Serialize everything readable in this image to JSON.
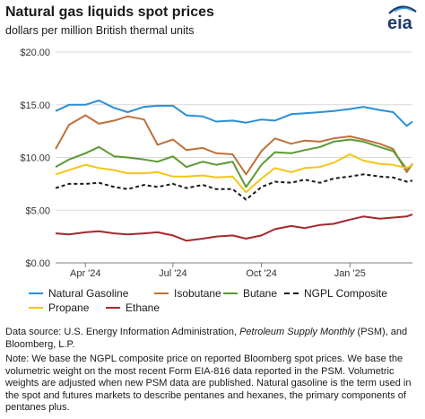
{
  "header": {
    "title": "Natural gas liquids spot prices",
    "subtitle": "dollars per million British thermal units",
    "logo_text": "eia"
  },
  "footer": {
    "source_a": "Data source: U.S. Energy Information Administration, ",
    "source_italic": "Petroleum Supply Monthly",
    "source_b": " (PSM), and Bloomberg, L.P.",
    "note": "Note: We base the NGPL composite price on reported Bloomberg spot prices. We base the volumetric weight on the most recent Form EIA-816 data reported in the PSM. Volumetric weights are adjusted when new PSM data are published. Natural gasoline is the term used in the spot and futures markets to describe pentanes and hexanes, the primary components of pentanes plus."
  },
  "chart_data": {
    "type": "line",
    "title": "Natural gas liquids spot prices",
    "subtitle": "dollars per million British thermal units",
    "ylim": [
      0,
      20
    ],
    "y_ticks": [
      "$0.00",
      "$5.00",
      "$10.00",
      "$15.00",
      "$20.00"
    ],
    "y_tick_values": [
      0,
      5,
      10,
      15,
      20
    ],
    "x_ticks": [
      "Apr '24",
      "Jul '24",
      "Oct '24",
      "Jan '25"
    ],
    "x_tick_values": [
      "2024-04-01",
      "2024-07-01",
      "2024-10-01",
      "2025-01-01"
    ],
    "x_range": [
      "2024-03-01",
      "2025-03-07"
    ],
    "grid": "horizontal",
    "legend_position": "bottom",
    "x": [
      "2024-03-01",
      "2024-03-15",
      "2024-04-01",
      "2024-04-15",
      "2024-05-01",
      "2024-05-15",
      "2024-06-01",
      "2024-06-15",
      "2024-07-01",
      "2024-07-15",
      "2024-08-01",
      "2024-08-15",
      "2024-09-01",
      "2024-09-15",
      "2024-10-01",
      "2024-10-15",
      "2024-11-01",
      "2024-11-15",
      "2024-12-01",
      "2024-12-15",
      "2025-01-01",
      "2025-01-15",
      "2025-02-01",
      "2025-02-15",
      "2025-03-01",
      "2025-03-07"
    ],
    "series": [
      {
        "name": "Natural Gasoline",
        "color": "#2a8fd4",
        "dash": "solid",
        "values": [
          14.4,
          15.0,
          15.0,
          15.4,
          14.7,
          14.3,
          14.8,
          14.9,
          14.9,
          14.0,
          13.9,
          13.4,
          13.5,
          13.3,
          13.6,
          13.5,
          14.1,
          14.2,
          14.3,
          14.4,
          14.6,
          14.8,
          14.5,
          14.3,
          13.0,
          13.4
        ]
      },
      {
        "name": "Isobutane",
        "color": "#c0703a",
        "dash": "solid",
        "values": [
          10.8,
          13.1,
          14.0,
          13.2,
          13.5,
          13.9,
          13.6,
          11.2,
          11.7,
          10.7,
          10.9,
          10.4,
          10.3,
          8.4,
          10.6,
          11.8,
          11.3,
          11.6,
          11.5,
          11.8,
          12.0,
          11.7,
          11.3,
          10.8,
          8.6,
          9.4
        ]
      },
      {
        "name": "Butane",
        "color": "#5a9a32",
        "dash": "solid",
        "values": [
          9.1,
          9.8,
          10.4,
          11.0,
          10.1,
          10.0,
          9.8,
          9.6,
          10.1,
          9.1,
          9.6,
          9.3,
          9.6,
          7.2,
          9.3,
          10.5,
          10.4,
          10.7,
          11.0,
          11.5,
          11.7,
          11.5,
          11.0,
          10.6,
          8.9,
          9.3
        ]
      },
      {
        "name": "NGPL Composite",
        "color": "#1a1a1a",
        "dash": "dashed",
        "values": [
          7.1,
          7.5,
          7.5,
          7.6,
          7.2,
          7.0,
          7.4,
          7.2,
          7.5,
          7.1,
          7.4,
          7.0,
          7.0,
          6.0,
          7.2,
          7.7,
          7.6,
          7.9,
          7.6,
          8.0,
          8.2,
          8.4,
          8.2,
          8.1,
          7.7,
          7.8
        ]
      },
      {
        "name": "Propane",
        "color": "#f5c518",
        "dash": "solid",
        "values": [
          8.4,
          8.8,
          9.3,
          9.0,
          8.8,
          8.5,
          8.5,
          8.6,
          8.2,
          8.2,
          8.3,
          8.1,
          8.2,
          6.7,
          8.0,
          9.0,
          8.6,
          9.0,
          9.1,
          9.5,
          10.3,
          9.7,
          9.4,
          9.3,
          9.0,
          9.3
        ]
      },
      {
        "name": "Ethane",
        "color": "#a5282d",
        "dash": "solid",
        "values": [
          2.8,
          2.7,
          2.9,
          3.0,
          2.8,
          2.7,
          2.8,
          2.9,
          2.6,
          2.1,
          2.3,
          2.5,
          2.6,
          2.3,
          2.6,
          3.2,
          3.5,
          3.3,
          3.6,
          3.7,
          4.1,
          4.4,
          4.2,
          4.3,
          4.4,
          4.6
        ]
      }
    ]
  }
}
